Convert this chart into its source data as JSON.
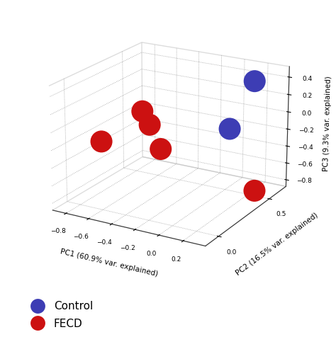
{
  "control_points": [
    {
      "pc1": 0.22,
      "pc2": 0.52,
      "pc3": 0.42
    },
    {
      "pc1": 0.22,
      "pc2": 0.28,
      "pc3": 0.05
    }
  ],
  "fecd_points": [
    {
      "pc1": -0.2,
      "pc2": -0.05,
      "pc3": 0.37
    },
    {
      "pc1": -0.14,
      "pc2": -0.05,
      "pc3": 0.24
    },
    {
      "pc1": -0.55,
      "pc2": -0.05,
      "pc3": -0.05
    },
    {
      "pc1": -0.05,
      "pc2": -0.05,
      "pc3": 0.0
    },
    {
      "pc1": 0.27,
      "pc2": 0.48,
      "pc3": -0.8
    }
  ],
  "control_color": "#3d3db4",
  "fecd_color": "#cc1111",
  "marker_size": 500,
  "xlabel": "PC1 (60.9% var. explained)",
  "ylabel": "PC2 (16.5% var. explained)",
  "zlabel": "PC3 (9.3% var. explained)",
  "xlim": [
    -0.92,
    0.38
  ],
  "ylim": [
    -0.12,
    0.68
  ],
  "zlim": [
    -0.88,
    0.52
  ],
  "xticks": [
    -0.8,
    -0.6,
    -0.4,
    -0.2,
    0.0,
    0.2
  ],
  "yticks": [
    0.0,
    0.5
  ],
  "zticks": [
    -0.8,
    -0.6,
    -0.4,
    -0.2,
    0.0,
    0.2,
    0.4
  ],
  "legend_control": "Control",
  "legend_fecd": "FECD",
  "background_color": "#ffffff",
  "grid_color": "#999999",
  "elev": 20,
  "azim": -60
}
